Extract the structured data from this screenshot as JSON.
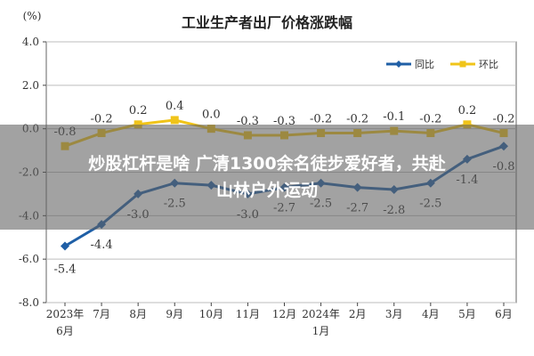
{
  "chart_data": {
    "type": "line",
    "title": "工业生产者出厂价格涨跌幅",
    "y_unit_label": "(%)",
    "ylim": [
      -8.0,
      4.0
    ],
    "y_ticks": [
      "4.0",
      "2.0",
      "0.0",
      "-2.0",
      "-4.0",
      "-6.0",
      "-8.0"
    ],
    "y_tick_values": [
      4,
      2,
      0,
      -2,
      -4,
      -6,
      -8
    ],
    "categories": [
      [
        "2023年",
        "6月"
      ],
      [
        "7月"
      ],
      [
        "8月"
      ],
      [
        "9月"
      ],
      [
        "10月"
      ],
      [
        "11月"
      ],
      [
        "12月"
      ],
      [
        "2024年",
        "1月"
      ],
      [
        "2月"
      ],
      [
        "3月"
      ],
      [
        "4月"
      ],
      [
        "5月"
      ],
      [
        "6月"
      ]
    ],
    "legend_position": "top-right",
    "series": [
      {
        "name": "同比",
        "color": "#1f5fa6",
        "marker": "diamond",
        "values": [
          -5.4,
          -4.4,
          -3.0,
          -2.5,
          -2.6,
          -3.0,
          -2.7,
          -2.5,
          -2.7,
          -2.8,
          -2.5,
          -1.4,
          -0.8
        ],
        "labels": [
          "-5.4",
          "-4.4",
          "-3.0",
          "-2.5",
          "",
          "-3.0",
          "-2.7",
          "-2.5",
          "-2.7",
          "-2.8",
          "-2.5",
          "-1.4",
          "-0.8"
        ]
      },
      {
        "name": "环比",
        "color": "#f0c419",
        "marker": "square",
        "values": [
          -0.8,
          -0.2,
          0.2,
          0.4,
          0.0,
          -0.3,
          -0.3,
          -0.2,
          -0.2,
          -0.1,
          -0.2,
          0.2,
          -0.2
        ],
        "labels": [
          "-0.8",
          "-0.2",
          "0.2",
          "0.4",
          "0.0",
          "-0.3",
          "-0.3",
          "-0.2",
          "-0.2",
          "-0.1",
          "-0.2",
          "0.2",
          "-0.2"
        ]
      }
    ]
  },
  "overlay": {
    "line1": "炒股杠杆是啥 广清1300余名徒步爱好者，共赴",
    "line2": "山林户外运动"
  }
}
